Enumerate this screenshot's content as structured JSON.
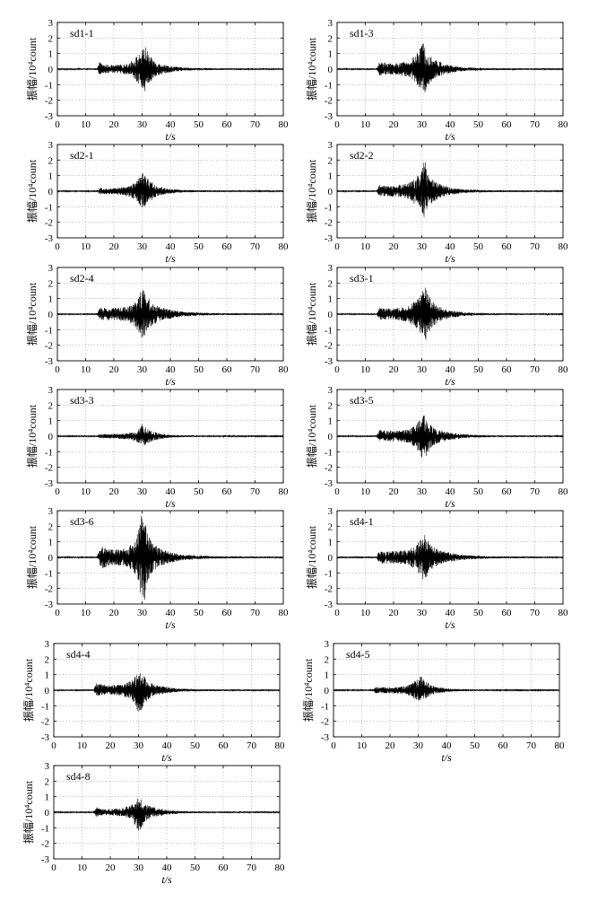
{
  "chart_data": [
    {
      "type": "line",
      "title": "sd1-1",
      "xlabel": "t/s",
      "ylabel": "振幅/10⁴count",
      "xlim": [
        0,
        80
      ],
      "ylim": [
        -3,
        3
      ],
      "xticks": [
        0,
        10,
        20,
        30,
        40,
        50,
        60,
        70,
        80
      ],
      "yticks": [
        3,
        2,
        1,
        0,
        -1,
        -2,
        -3
      ],
      "grid": true,
      "x": [
        0,
        14,
        15,
        16,
        20,
        25,
        28,
        30,
        31,
        32,
        34,
        36,
        40,
        45,
        55,
        80
      ],
      "upper": [
        0.04,
        0.05,
        0.5,
        0.3,
        0.25,
        0.35,
        0.8,
        1.2,
        1.6,
        1.1,
        0.6,
        0.4,
        0.2,
        0.1,
        0.06,
        0.04
      ],
      "lower": [
        -0.04,
        -0.05,
        -0.4,
        -0.3,
        -0.25,
        -0.35,
        -0.8,
        -1.2,
        -1.5,
        -1.0,
        -0.6,
        -0.4,
        -0.2,
        -0.1,
        -0.06,
        -0.04
      ]
    },
    {
      "type": "line",
      "title": "sd1-3",
      "xlabel": "t/s",
      "ylabel": "振幅/10⁴count",
      "xlim": [
        0,
        80
      ],
      "ylim": [
        -3,
        3
      ],
      "xticks": [
        0,
        10,
        20,
        30,
        40,
        50,
        60,
        70,
        80
      ],
      "yticks": [
        3,
        2,
        1,
        0,
        -1,
        -2,
        -3
      ],
      "grid": true,
      "x": [
        0,
        14,
        15,
        16,
        20,
        25,
        28,
        30,
        31,
        32,
        34,
        36,
        40,
        45,
        55,
        80
      ],
      "upper": [
        0.04,
        0.05,
        0.5,
        0.45,
        0.35,
        0.5,
        0.9,
        1.6,
        1.9,
        1.2,
        0.7,
        0.5,
        0.25,
        0.12,
        0.06,
        0.04
      ],
      "lower": [
        -0.04,
        -0.05,
        -0.45,
        -0.4,
        -0.35,
        -0.5,
        -0.9,
        -1.4,
        -1.6,
        -1.1,
        -0.7,
        -0.5,
        -0.25,
        -0.12,
        -0.06,
        -0.04
      ]
    },
    {
      "type": "line",
      "title": "sd2-1",
      "xlabel": "t/s",
      "ylabel": "振幅/10⁴count",
      "xlim": [
        0,
        80
      ],
      "ylim": [
        -3,
        3
      ],
      "xticks": [
        0,
        10,
        20,
        30,
        40,
        50,
        60,
        70,
        80
      ],
      "yticks": [
        3,
        2,
        1,
        0,
        -1,
        -2,
        -3
      ],
      "grid": true,
      "x": [
        0,
        14,
        15,
        16,
        20,
        25,
        28,
        30,
        31,
        32,
        34,
        36,
        40,
        45,
        55,
        80
      ],
      "upper": [
        0.04,
        0.05,
        0.25,
        0.2,
        0.2,
        0.3,
        0.6,
        1.3,
        1.0,
        0.8,
        0.5,
        0.3,
        0.15,
        0.08,
        0.05,
        0.04
      ],
      "lower": [
        -0.04,
        -0.05,
        -0.2,
        -0.2,
        -0.2,
        -0.3,
        -0.6,
        -1.1,
        -1.0,
        -0.8,
        -0.5,
        -0.3,
        -0.15,
        -0.08,
        -0.05,
        -0.04
      ]
    },
    {
      "type": "line",
      "title": "sd2-2",
      "xlabel": "t/s",
      "ylabel": "振幅/10⁴count",
      "xlim": [
        0,
        80
      ],
      "ylim": [
        -3,
        3
      ],
      "xticks": [
        0,
        10,
        20,
        30,
        40,
        50,
        60,
        70,
        80
      ],
      "yticks": [
        3,
        2,
        1,
        0,
        -1,
        -2,
        -3
      ],
      "grid": true,
      "x": [
        0,
        14,
        15,
        16,
        20,
        25,
        28,
        30,
        31,
        32,
        34,
        36,
        40,
        45,
        55,
        80
      ],
      "upper": [
        0.04,
        0.05,
        0.4,
        0.35,
        0.35,
        0.5,
        0.9,
        1.5,
        2.1,
        1.2,
        0.7,
        0.5,
        0.25,
        0.12,
        0.06,
        0.04
      ],
      "lower": [
        -0.04,
        -0.05,
        -0.35,
        -0.35,
        -0.35,
        -0.5,
        -0.9,
        -1.3,
        -1.8,
        -1.1,
        -0.7,
        -0.5,
        -0.25,
        -0.12,
        -0.06,
        -0.04
      ]
    },
    {
      "type": "line",
      "title": "sd2-4",
      "xlabel": "t/s",
      "ylabel": "振幅/10⁴count",
      "xlim": [
        0,
        80
      ],
      "ylim": [
        -3,
        3
      ],
      "xticks": [
        0,
        10,
        20,
        30,
        40,
        50,
        60,
        70,
        80
      ],
      "yticks": [
        3,
        2,
        1,
        0,
        -1,
        -2,
        -3
      ],
      "grid": true,
      "x": [
        0,
        14,
        15,
        16,
        20,
        25,
        28,
        30,
        31,
        32,
        34,
        36,
        40,
        45,
        55,
        80
      ],
      "upper": [
        0.04,
        0.05,
        0.4,
        0.4,
        0.4,
        0.5,
        0.9,
        1.8,
        1.5,
        1.1,
        0.7,
        0.5,
        0.3,
        0.15,
        0.07,
        0.04
      ],
      "lower": [
        -0.04,
        -0.05,
        -0.35,
        -0.4,
        -0.4,
        -0.5,
        -0.9,
        -1.9,
        -1.4,
        -1.0,
        -0.7,
        -0.5,
        -0.3,
        -0.15,
        -0.07,
        -0.04
      ]
    },
    {
      "type": "line",
      "title": "sd3-1",
      "xlabel": "t/s",
      "ylabel": "振幅/10⁴count",
      "xlim": [
        0,
        80
      ],
      "ylim": [
        -3,
        3
      ],
      "xticks": [
        0,
        10,
        20,
        30,
        40,
        50,
        60,
        70,
        80
      ],
      "yticks": [
        3,
        2,
        1,
        0,
        -1,
        -2,
        -3
      ],
      "grid": true,
      "x": [
        0,
        14,
        15,
        16,
        20,
        25,
        28,
        30,
        31,
        32,
        34,
        36,
        40,
        45,
        55,
        80
      ],
      "upper": [
        0.04,
        0.05,
        0.45,
        0.4,
        0.35,
        0.5,
        0.9,
        1.5,
        2.4,
        1.4,
        0.8,
        0.5,
        0.25,
        0.12,
        0.06,
        0.04
      ],
      "lower": [
        -0.04,
        -0.05,
        -0.4,
        -0.35,
        -0.35,
        -0.5,
        -0.9,
        -1.4,
        -2.2,
        -1.3,
        -0.8,
        -0.5,
        -0.25,
        -0.12,
        -0.06,
        -0.04
      ]
    },
    {
      "type": "line",
      "title": "sd3-3",
      "xlabel": "t/s",
      "ylabel": "振幅/10⁴count",
      "xlim": [
        0,
        80
      ],
      "ylim": [
        -3,
        3
      ],
      "xticks": [
        0,
        10,
        20,
        30,
        40,
        50,
        60,
        70,
        80
      ],
      "yticks": [
        3,
        2,
        1,
        0,
        -1,
        -2,
        -3
      ],
      "grid": true,
      "x": [
        0,
        14,
        15,
        16,
        20,
        25,
        28,
        30,
        31,
        32,
        34,
        36,
        40,
        45,
        55,
        80
      ],
      "upper": [
        0.03,
        0.04,
        0.15,
        0.15,
        0.15,
        0.2,
        0.35,
        0.8,
        0.6,
        0.45,
        0.3,
        0.2,
        0.1,
        0.06,
        0.04,
        0.03
      ],
      "lower": [
        -0.03,
        -0.04,
        -0.15,
        -0.15,
        -0.15,
        -0.2,
        -0.35,
        -0.6,
        -0.6,
        -0.45,
        -0.3,
        -0.2,
        -0.1,
        -0.06,
        -0.04,
        -0.03
      ]
    },
    {
      "type": "line",
      "title": "sd3-5",
      "xlabel": "t/s",
      "ylabel": "振幅/10⁴count",
      "xlim": [
        0,
        80
      ],
      "ylim": [
        -3,
        3
      ],
      "xticks": [
        0,
        10,
        20,
        30,
        40,
        50,
        60,
        70,
        80
      ],
      "yticks": [
        3,
        2,
        1,
        0,
        -1,
        -2,
        -3
      ],
      "grid": true,
      "x": [
        0,
        14,
        15,
        16,
        20,
        25,
        28,
        30,
        31,
        32,
        34,
        36,
        40,
        45,
        55,
        80
      ],
      "upper": [
        0.04,
        0.05,
        0.45,
        0.4,
        0.35,
        0.45,
        0.8,
        1.4,
        1.5,
        1.0,
        0.6,
        0.45,
        0.25,
        0.12,
        0.06,
        0.04
      ],
      "lower": [
        -0.04,
        -0.05,
        -0.35,
        -0.35,
        -0.35,
        -0.45,
        -0.8,
        -1.5,
        -1.7,
        -1.1,
        -0.6,
        -0.45,
        -0.25,
        -0.12,
        -0.06,
        -0.04
      ]
    },
    {
      "type": "line",
      "title": "sd3-6",
      "xlabel": "t/s",
      "ylabel": "振幅/10⁴count",
      "xlim": [
        0,
        80
      ],
      "ylim": [
        -3,
        3
      ],
      "xticks": [
        0,
        10,
        20,
        30,
        40,
        50,
        60,
        70,
        80
      ],
      "yticks": [
        3,
        2,
        1,
        0,
        -1,
        -2,
        -3
      ],
      "grid": true,
      "x": [
        0,
        14,
        15,
        16,
        20,
        25,
        28,
        30,
        31,
        32,
        34,
        36,
        40,
        45,
        55,
        80
      ],
      "upper": [
        0.04,
        0.05,
        0.6,
        0.7,
        0.5,
        0.6,
        1.3,
        2.9,
        2.6,
        1.6,
        0.9,
        0.6,
        0.35,
        0.18,
        0.08,
        0.04
      ],
      "lower": [
        -0.04,
        -0.05,
        -0.5,
        -0.7,
        -0.5,
        -0.6,
        -1.3,
        -3.0,
        -2.8,
        -1.6,
        -0.9,
        -0.6,
        -0.35,
        -0.18,
        -0.08,
        -0.04
      ]
    },
    {
      "type": "line",
      "title": "sd4-1",
      "xlabel": "t/s",
      "ylabel": "振幅/10⁴count",
      "xlim": [
        0,
        80
      ],
      "ylim": [
        -3,
        3
      ],
      "xticks": [
        0,
        10,
        20,
        30,
        40,
        50,
        60,
        70,
        80
      ],
      "yticks": [
        3,
        2,
        1,
        0,
        -1,
        -2,
        -3
      ],
      "grid": true,
      "x": [
        0,
        14,
        15,
        16,
        20,
        25,
        28,
        30,
        31,
        32,
        34,
        36,
        40,
        45,
        55,
        80
      ],
      "upper": [
        0.04,
        0.05,
        0.45,
        0.4,
        0.4,
        0.5,
        0.8,
        1.4,
        1.6,
        1.1,
        0.7,
        0.5,
        0.3,
        0.15,
        0.07,
        0.04
      ],
      "lower": [
        -0.04,
        -0.05,
        -0.4,
        -0.4,
        -0.4,
        -0.5,
        -0.8,
        -1.3,
        -1.7,
        -1.1,
        -0.7,
        -0.5,
        -0.3,
        -0.15,
        -0.07,
        -0.04
      ]
    },
    {
      "type": "line",
      "title": "sd4-4",
      "xlabel": "t/s",
      "ylabel": "振幅/10⁴count",
      "xlim": [
        0,
        80
      ],
      "ylim": [
        -3,
        3
      ],
      "xticks": [
        0,
        10,
        20,
        30,
        40,
        50,
        60,
        70,
        80
      ],
      "yticks": [
        3,
        2,
        1,
        0,
        -1,
        -2,
        -3
      ],
      "grid": true,
      "x": [
        0,
        14,
        15,
        16,
        20,
        25,
        28,
        30,
        31,
        32,
        34,
        36,
        40,
        45,
        55,
        80
      ],
      "upper": [
        0.04,
        0.05,
        0.45,
        0.4,
        0.3,
        0.4,
        0.7,
        1.2,
        1.3,
        0.9,
        0.5,
        0.35,
        0.2,
        0.1,
        0.06,
        0.04
      ],
      "lower": [
        -0.04,
        -0.05,
        -0.4,
        -0.35,
        -0.3,
        -0.4,
        -0.7,
        -1.5,
        -1.3,
        -0.9,
        -0.5,
        -0.35,
        -0.2,
        -0.1,
        -0.06,
        -0.04
      ]
    },
    {
      "type": "line",
      "title": "sd4-5",
      "xlabel": "t/s",
      "ylabel": "振幅/10⁴count",
      "xlim": [
        0,
        80
      ],
      "ylim": [
        -3,
        3
      ],
      "xticks": [
        0,
        10,
        20,
        30,
        40,
        50,
        60,
        70,
        80
      ],
      "yticks": [
        3,
        2,
        1,
        0,
        -1,
        -2,
        -3
      ],
      "grid": true,
      "x": [
        0,
        14,
        15,
        16,
        20,
        25,
        28,
        30,
        31,
        32,
        34,
        36,
        40,
        45,
        55,
        80
      ],
      "upper": [
        0.03,
        0.04,
        0.25,
        0.2,
        0.2,
        0.25,
        0.45,
        0.8,
        1.1,
        0.7,
        0.4,
        0.25,
        0.12,
        0.07,
        0.04,
        0.03
      ],
      "lower": [
        -0.03,
        -0.04,
        -0.2,
        -0.2,
        -0.2,
        -0.25,
        -0.45,
        -0.8,
        -0.8,
        -0.6,
        -0.4,
        -0.25,
        -0.12,
        -0.07,
        -0.04,
        -0.03
      ]
    },
    {
      "type": "line",
      "title": "sd4-8",
      "xlabel": "t/s",
      "ylabel": "振幅/10⁴count",
      "xlim": [
        0,
        80
      ],
      "ylim": [
        -3,
        3
      ],
      "xticks": [
        0,
        10,
        20,
        30,
        40,
        50,
        60,
        70,
        80
      ],
      "yticks": [
        3,
        2,
        1,
        0,
        -1,
        -2,
        -3
      ],
      "grid": true,
      "x": [
        0,
        14,
        15,
        16,
        20,
        25,
        28,
        30,
        31,
        32,
        34,
        36,
        40,
        45,
        55,
        80
      ],
      "upper": [
        0.04,
        0.05,
        0.35,
        0.25,
        0.2,
        0.3,
        0.55,
        1.0,
        0.9,
        0.6,
        0.4,
        0.3,
        0.15,
        0.08,
        0.05,
        0.04
      ],
      "lower": [
        -0.04,
        -0.05,
        -0.3,
        -0.25,
        -0.2,
        -0.3,
        -0.55,
        -1.4,
        -1.0,
        -0.7,
        -0.4,
        -0.3,
        -0.15,
        -0.08,
        -0.05,
        -0.04
      ]
    }
  ]
}
